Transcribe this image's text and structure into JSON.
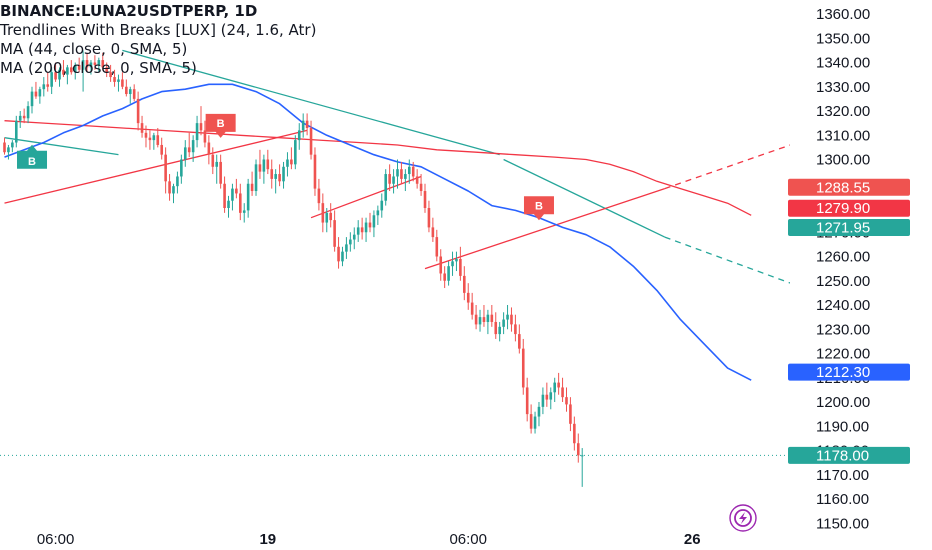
{
  "legend": {
    "symbol": "BINANCE:LUNA2USDTPERP, 1D",
    "indicators": [
      "Trendlines With Breaks [LUX] (24, 1.6, Atr)",
      "MA (44, close, 0, SMA, 5)",
      "MA (200, close, 0, SMA, 5)"
    ]
  },
  "colors": {
    "up": "#26a69a",
    "down": "#ef5350",
    "ma44": "#2962ff",
    "ma200": "#f23645",
    "trend_upper": "#26a69a",
    "trend_lower": "#f23645",
    "axis_text": "#131722",
    "logo": "#9c27b0"
  },
  "chart_data": {
    "type": "candlestick",
    "ylim": [
      1150,
      1360
    ],
    "yticks": [
      "1360.00",
      "1350.00",
      "1340.00",
      "1330.00",
      "1320.00",
      "1310.00",
      "1300.00",
      "1290.00",
      "1280.00",
      "1270.00",
      "1260.00",
      "1250.00",
      "1240.00",
      "1230.00",
      "1220.00",
      "1210.00",
      "1200.00",
      "1190.00",
      "1180.00",
      "1170.00",
      "1160.00",
      "1150.00"
    ],
    "xticks": [
      {
        "label": "06:00",
        "bar": 13
      },
      {
        "label": "19",
        "bar": 67
      },
      {
        "label": "06:00",
        "bar": 118
      },
      {
        "label": "26",
        "bar": 175
      }
    ],
    "candles": [
      [
        1307,
        1309,
        1302,
        1303
      ],
      [
        1303,
        1306,
        1300,
        1305
      ],
      [
        1305,
        1308,
        1303,
        1307
      ],
      [
        1307,
        1318,
        1305,
        1316
      ],
      [
        1316,
        1320,
        1313,
        1318
      ],
      [
        1318,
        1321,
        1315,
        1317
      ],
      [
        1317,
        1324,
        1315,
        1322
      ],
      [
        1322,
        1330,
        1319,
        1328
      ],
      [
        1328,
        1332,
        1325,
        1326
      ],
      [
        1326,
        1330,
        1323,
        1329
      ],
      [
        1329,
        1334,
        1326,
        1331
      ],
      [
        1331,
        1336,
        1328,
        1330
      ],
      [
        1330,
        1338,
        1327,
        1336
      ],
      [
        1336,
        1340,
        1332,
        1333
      ],
      [
        1333,
        1338,
        1330,
        1337
      ],
      [
        1337,
        1341,
        1334,
        1335
      ],
      [
        1335,
        1339,
        1331,
        1338
      ],
      [
        1338,
        1341,
        1335,
        1336
      ],
      [
        1336,
        1340,
        1333,
        1339
      ],
      [
        1339,
        1342,
        1336,
        1337
      ],
      [
        1337,
        1345,
        1328,
        1341
      ],
      [
        1341,
        1344,
        1336,
        1338
      ],
      [
        1338,
        1341,
        1335,
        1340
      ],
      [
        1340,
        1343,
        1337,
        1339
      ],
      [
        1339,
        1342,
        1336,
        1341
      ],
      [
        1341,
        1344,
        1337,
        1338
      ],
      [
        1338,
        1340,
        1334,
        1336
      ],
      [
        1336,
        1339,
        1332,
        1334
      ],
      [
        1334,
        1337,
        1330,
        1332
      ],
      [
        1332,
        1335,
        1328,
        1333
      ],
      [
        1333,
        1336,
        1329,
        1330
      ],
      [
        1330,
        1333,
        1326,
        1327
      ],
      [
        1327,
        1330,
        1323,
        1329
      ],
      [
        1329,
        1331,
        1324,
        1325
      ],
      [
        1325,
        1328,
        1312,
        1315
      ],
      [
        1315,
        1318,
        1309,
        1311
      ],
      [
        1311,
        1314,
        1305,
        1309
      ],
      [
        1309,
        1312,
        1304,
        1308
      ],
      [
        1308,
        1311,
        1304,
        1310
      ],
      [
        1310,
        1313,
        1305,
        1306
      ],
      [
        1306,
        1309,
        1300,
        1302
      ],
      [
        1302,
        1305,
        1286,
        1291
      ],
      [
        1291,
        1294,
        1283,
        1286
      ],
      [
        1286,
        1290,
        1282,
        1289
      ],
      [
        1289,
        1295,
        1286,
        1293
      ],
      [
        1293,
        1302,
        1290,
        1300
      ],
      [
        1300,
        1308,
        1297,
        1305
      ],
      [
        1305,
        1311,
        1301,
        1303
      ],
      [
        1303,
        1310,
        1299,
        1308
      ],
      [
        1308,
        1318,
        1305,
        1315
      ],
      [
        1315,
        1322,
        1310,
        1312
      ],
      [
        1312,
        1316,
        1305,
        1307
      ],
      [
        1307,
        1310,
        1298,
        1302
      ],
      [
        1302,
        1305,
        1294,
        1297
      ],
      [
        1297,
        1302,
        1290,
        1299
      ],
      [
        1299,
        1302,
        1288,
        1290
      ],
      [
        1290,
        1293,
        1278,
        1280
      ],
      [
        1280,
        1285,
        1276,
        1283
      ],
      [
        1283,
        1290,
        1279,
        1288
      ],
      [
        1288,
        1292,
        1284,
        1286
      ],
      [
        1286,
        1290,
        1275,
        1278
      ],
      [
        1278,
        1282,
        1274,
        1279
      ],
      [
        1279,
        1292,
        1276,
        1290
      ],
      [
        1290,
        1295,
        1285,
        1287
      ],
      [
        1287,
        1300,
        1285,
        1298
      ],
      [
        1298,
        1304,
        1292,
        1295
      ],
      [
        1295,
        1302,
        1290,
        1300
      ],
      [
        1300,
        1304,
        1294,
        1296
      ],
      [
        1296,
        1300,
        1288,
        1292
      ],
      [
        1292,
        1296,
        1286,
        1294
      ],
      [
        1294,
        1298,
        1289,
        1291
      ],
      [
        1291,
        1299,
        1288,
        1297
      ],
      [
        1297,
        1303,
        1293,
        1300
      ],
      [
        1300,
        1305,
        1296,
        1298
      ],
      [
        1298,
        1310,
        1296,
        1308
      ],
      [
        1308,
        1315,
        1304,
        1312
      ],
      [
        1312,
        1319,
        1309,
        1316
      ],
      [
        1316,
        1319,
        1310,
        1313
      ],
      [
        1313,
        1316,
        1300,
        1302
      ],
      [
        1302,
        1305,
        1285,
        1288
      ],
      [
        1288,
        1292,
        1279,
        1282
      ],
      [
        1282,
        1286,
        1270,
        1274
      ],
      [
        1274,
        1280,
        1270,
        1278
      ],
      [
        1278,
        1282,
        1272,
        1275
      ],
      [
        1275,
        1279,
        1262,
        1264
      ],
      [
        1264,
        1268,
        1255,
        1258
      ],
      [
        1258,
        1264,
        1256,
        1262
      ],
      [
        1262,
        1268,
        1259,
        1265
      ],
      [
        1265,
        1270,
        1262,
        1267
      ],
      [
        1267,
        1272,
        1263,
        1269
      ],
      [
        1269,
        1275,
        1266,
        1272
      ],
      [
        1272,
        1276,
        1267,
        1270
      ],
      [
        1270,
        1276,
        1266,
        1274
      ],
      [
        1274,
        1278,
        1270,
        1272
      ],
      [
        1272,
        1279,
        1268,
        1277
      ],
      [
        1277,
        1281,
        1273,
        1279
      ],
      [
        1279,
        1286,
        1276,
        1283
      ],
      [
        1283,
        1296,
        1281,
        1294
      ],
      [
        1294,
        1298,
        1287,
        1290
      ],
      [
        1290,
        1296,
        1286,
        1293
      ],
      [
        1293,
        1300,
        1288,
        1296
      ],
      [
        1296,
        1299,
        1290,
        1292
      ],
      [
        1292,
        1296,
        1287,
        1294
      ],
      [
        1294,
        1300,
        1290,
        1297
      ],
      [
        1297,
        1299,
        1291,
        1293
      ],
      [
        1293,
        1296,
        1288,
        1290
      ],
      [
        1290,
        1294,
        1285,
        1287
      ],
      [
        1287,
        1290,
        1278,
        1280
      ],
      [
        1280,
        1283,
        1270,
        1272
      ],
      [
        1272,
        1276,
        1266,
        1268
      ],
      [
        1268,
        1271,
        1258,
        1260
      ],
      [
        1260,
        1263,
        1250,
        1253
      ],
      [
        1253,
        1256,
        1247,
        1250
      ],
      [
        1250,
        1258,
        1248,
        1256
      ],
      [
        1256,
        1262,
        1252,
        1258
      ],
      [
        1258,
        1262,
        1254,
        1259
      ],
      [
        1259,
        1264,
        1250,
        1252
      ],
      [
        1252,
        1256,
        1242,
        1245
      ],
      [
        1245,
        1249,
        1238,
        1241
      ],
      [
        1241,
        1245,
        1234,
        1236
      ],
      [
        1236,
        1240,
        1230,
        1232
      ],
      [
        1232,
        1238,
        1229,
        1235
      ],
      [
        1235,
        1240,
        1231,
        1233
      ],
      [
        1233,
        1238,
        1228,
        1236
      ],
      [
        1236,
        1240,
        1231,
        1233
      ],
      [
        1233,
        1237,
        1226,
        1228
      ],
      [
        1228,
        1233,
        1225,
        1231
      ],
      [
        1231,
        1237,
        1228,
        1234
      ],
      [
        1234,
        1240,
        1230,
        1236
      ],
      [
        1236,
        1239,
        1229,
        1232
      ],
      [
        1232,
        1236,
        1225,
        1228
      ],
      [
        1228,
        1232,
        1220,
        1222
      ],
      [
        1222,
        1226,
        1203,
        1206
      ],
      [
        1206,
        1210,
        1192,
        1195
      ],
      [
        1195,
        1199,
        1187,
        1189
      ],
      [
        1189,
        1196,
        1187,
        1194
      ],
      [
        1194,
        1200,
        1190,
        1198
      ],
      [
        1198,
        1206,
        1195,
        1203
      ],
      [
        1203,
        1208,
        1198,
        1201
      ],
      [
        1201,
        1206,
        1197,
        1204
      ],
      [
        1204,
        1210,
        1200,
        1208
      ],
      [
        1208,
        1212,
        1203,
        1206
      ],
      [
        1206,
        1210,
        1200,
        1202
      ],
      [
        1202,
        1206,
        1196,
        1199
      ],
      [
        1199,
        1202,
        1188,
        1191
      ],
      [
        1191,
        1194,
        1180,
        1183
      ],
      [
        1183,
        1187,
        1175,
        1178
      ],
      [
        1178,
        1181,
        1165,
        1178
      ]
    ],
    "ma44": [
      [
        0,
        1301
      ],
      [
        5,
        1304
      ],
      [
        10,
        1307
      ],
      [
        15,
        1311
      ],
      [
        20,
        1314
      ],
      [
        25,
        1318
      ],
      [
        30,
        1321
      ],
      [
        35,
        1325
      ],
      [
        40,
        1328
      ],
      [
        46,
        1329
      ],
      [
        52,
        1331
      ],
      [
        58,
        1331
      ],
      [
        64,
        1328
      ],
      [
        70,
        1323
      ],
      [
        76,
        1315
      ],
      [
        82,
        1310
      ],
      [
        88,
        1306
      ],
      [
        94,
        1302
      ],
      [
        100,
        1299
      ],
      [
        106,
        1297
      ],
      [
        112,
        1292
      ],
      [
        118,
        1287
      ],
      [
        124,
        1281
      ],
      [
        130,
        1279
      ],
      [
        136,
        1276
      ],
      [
        142,
        1272
      ],
      [
        148,
        1269
      ],
      [
        154,
        1264
      ],
      [
        160,
        1256
      ],
      [
        166,
        1246
      ],
      [
        172,
        1234
      ],
      [
        178,
        1224
      ],
      [
        184,
        1214
      ],
      [
        190,
        1209
      ]
    ],
    "ma200": [
      [
        0,
        1316
      ],
      [
        10,
        1315
      ],
      [
        20,
        1314
      ],
      [
        30,
        1313
      ],
      [
        40,
        1312
      ],
      [
        50,
        1311
      ],
      [
        60,
        1310
      ],
      [
        70,
        1309
      ],
      [
        80,
        1308
      ],
      [
        90,
        1307
      ],
      [
        100,
        1306
      ],
      [
        110,
        1304
      ],
      [
        120,
        1303
      ],
      [
        130,
        1302
      ],
      [
        140,
        1301
      ],
      [
        148,
        1300
      ],
      [
        154,
        1298
      ],
      [
        160,
        1295
      ],
      [
        166,
        1291
      ],
      [
        172,
        1288
      ],
      [
        178,
        1285
      ],
      [
        184,
        1282
      ],
      [
        190,
        1277
      ]
    ],
    "trendlines": [
      {
        "kind": "upper",
        "from": [
          0,
          1309
        ],
        "to": [
          29,
          1302
        ]
      },
      {
        "kind": "upper",
        "from": [
          30,
          1345
        ],
        "to": [
          126,
          1302
        ]
      },
      {
        "kind": "upper",
        "from": [
          127,
          1300
        ],
        "to": [
          168,
          1268
        ]
      },
      {
        "kind": "upper",
        "dashed": true,
        "from": [
          168,
          1268
        ],
        "to": [
          200,
          1249
        ]
      },
      {
        "kind": "lower",
        "from": [
          0,
          1282
        ],
        "to": [
          77,
          1312
        ]
      },
      {
        "kind": "lower",
        "from": [
          78,
          1276
        ],
        "to": [
          106,
          1293
        ]
      },
      {
        "kind": "lower",
        "from": [
          107,
          1255
        ],
        "to": [
          168,
          1288
        ]
      },
      {
        "kind": "lower",
        "dashed": true,
        "from": [
          168,
          1288
        ],
        "to": [
          200,
          1306
        ]
      }
    ],
    "signals": [
      {
        "label": "B",
        "type": "up",
        "bar": 7,
        "price": 1304
      },
      {
        "label": "B",
        "type": "down",
        "bar": 55,
        "price": 1311
      },
      {
        "label": "B",
        "type": "down",
        "bar": 136,
        "price": 1277
      }
    ],
    "price_labels": [
      {
        "text": "1288.55",
        "price": 1288.55,
        "color": "#ef5350"
      },
      {
        "text": "1279.90",
        "price": 1279.9,
        "color": "#f23645"
      },
      {
        "text": "1271.95",
        "price": 1271.95,
        "color": "#26a69a"
      },
      {
        "text": "1212.30",
        "price": 1212.3,
        "color": "#2962ff"
      },
      {
        "text": "1178.00",
        "price": 1178.0,
        "color": "#26a69a"
      }
    ],
    "last_price": 1178.0
  }
}
